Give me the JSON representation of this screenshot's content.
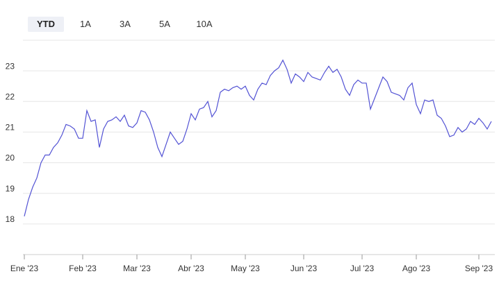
{
  "range_options": [
    "YTD",
    "1A",
    "3A",
    "5A",
    "10A"
  ],
  "selected_range": "YTD",
  "chart_data": {
    "type": "line",
    "categories": [
      "Ene '23",
      null,
      null,
      null,
      null,
      null,
      null,
      null,
      null,
      null,
      null,
      null,
      null,
      null,
      "Feb '23",
      null,
      null,
      null,
      null,
      null,
      null,
      null,
      null,
      null,
      null,
      null,
      null,
      "Mar '23",
      null,
      null,
      null,
      null,
      null,
      null,
      null,
      null,
      null,
      null,
      null,
      null,
      "Abr '23",
      null,
      null,
      null,
      null,
      null,
      null,
      null,
      null,
      null,
      null,
      null,
      null,
      "May '23",
      null,
      null,
      null,
      null,
      null,
      null,
      null,
      null,
      null,
      null,
      null,
      null,
      null,
      "Jun '23",
      null,
      null,
      null,
      null,
      null,
      null,
      null,
      null,
      null,
      null,
      null,
      null,
      null,
      "Jul '23",
      null,
      null,
      null,
      null,
      null,
      null,
      null,
      null,
      null,
      null,
      null,
      null,
      "Ago '23",
      null,
      null,
      null,
      null,
      null,
      null,
      null,
      null,
      null,
      null,
      null,
      null,
      null,
      null,
      "Sep '23",
      null,
      null,
      null
    ],
    "series": [
      {
        "color": "#5252d4",
        "values": [
          18.25,
          18.8,
          19.2,
          19.5,
          20.0,
          20.25,
          20.25,
          20.5,
          20.65,
          20.9,
          21.25,
          21.2,
          21.1,
          20.8,
          20.8,
          21.7,
          21.35,
          21.4,
          20.5,
          21.1,
          21.35,
          21.4,
          21.5,
          21.35,
          21.55,
          21.2,
          21.15,
          21.3,
          21.7,
          21.65,
          21.4,
          21.0,
          20.5,
          20.2,
          20.6,
          21.0,
          20.8,
          20.6,
          20.7,
          21.1,
          21.6,
          21.4,
          21.75,
          21.8,
          22.0,
          21.5,
          21.7,
          22.3,
          22.4,
          22.35,
          22.45,
          22.5,
          22.4,
          22.5,
          22.2,
          22.05,
          22.4,
          22.6,
          22.55,
          22.85,
          23.0,
          23.1,
          23.35,
          23.05,
          22.6,
          22.9,
          22.8,
          22.65,
          22.95,
          22.8,
          22.75,
          22.7,
          22.95,
          23.15,
          22.95,
          23.05,
          22.8,
          22.4,
          22.2,
          22.55,
          22.7,
          22.6,
          22.6,
          21.75,
          22.1,
          22.45,
          22.8,
          22.65,
          22.3,
          22.25,
          22.2,
          22.05,
          22.45,
          22.6,
          21.9,
          21.6,
          22.05,
          22.0,
          22.05,
          21.55,
          21.45,
          21.2,
          20.85,
          20.9,
          21.15,
          21.0,
          21.1,
          21.35,
          21.25,
          21.45,
          21.3,
          21.1,
          21.35
        ]
      }
    ],
    "ylim": [
      17,
      24
    ],
    "yticks": [
      18,
      19,
      20,
      21,
      22,
      23
    ],
    "grid": true
  }
}
